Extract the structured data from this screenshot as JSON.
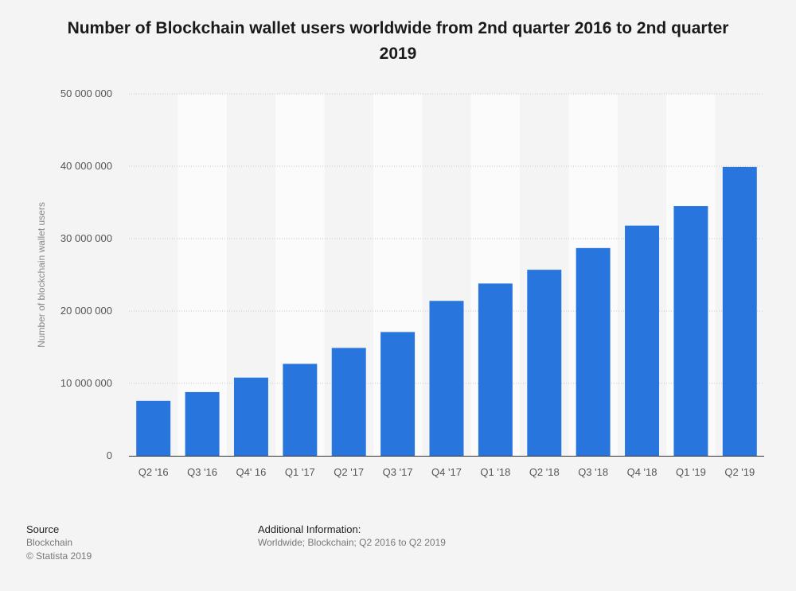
{
  "chart_data": {
    "type": "bar",
    "title": "Number of Blockchain wallet users worldwide from 2nd quarter 2016 to 2nd quarter 2019",
    "xlabel": "",
    "ylabel": "Number of blockchain wallet users",
    "categories": [
      "Q2 '16",
      "Q3 '16",
      "Q4' 16",
      "Q1 '17",
      "Q2 '17",
      "Q3 '17",
      "Q4 '17",
      "Q1 '18",
      "Q2 '18",
      "Q3 '18",
      "Q4 '18",
      "Q1 '19",
      "Q2 '19"
    ],
    "values": [
      7600000,
      8800000,
      10800000,
      12700000,
      14900000,
      17100000,
      21400000,
      23800000,
      25700000,
      28700000,
      31800000,
      34500000,
      39900000
    ],
    "ylim": [
      0,
      50000000
    ],
    "yticks": [
      0,
      10000000,
      20000000,
      30000000,
      40000000,
      50000000
    ],
    "ytick_labels": [
      "0",
      "10 000 000",
      "20 000 000",
      "30 000 000",
      "40 000 000",
      "50 000 000"
    ],
    "grid": true,
    "bar_color": "#2876dd"
  },
  "footer": {
    "source_heading": "Source",
    "source_name": "Blockchain",
    "copyright": "© Statista 2019",
    "additional_heading": "Additional Information:",
    "additional_text": "Worldwide; Blockchain; Q2 2016 to Q2 2019"
  }
}
